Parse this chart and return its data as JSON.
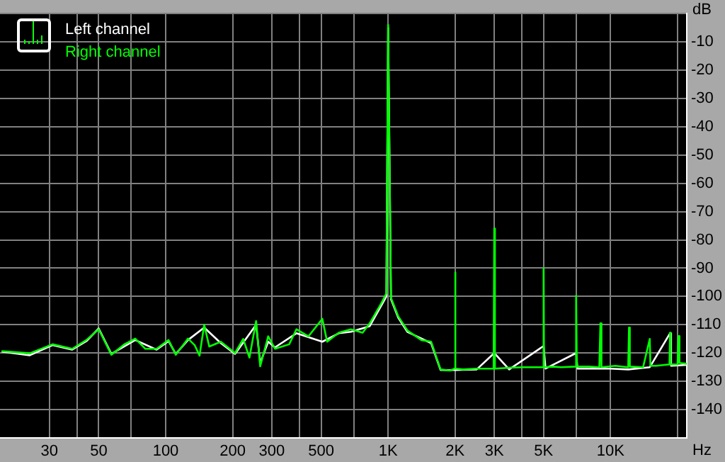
{
  "chart_data": {
    "type": "line",
    "xlabel": "Hz",
    "ylabel": "dB",
    "log": "x",
    "xlim": [
      18,
      22000
    ],
    "ylim": [
      -150,
      0
    ],
    "xticks": [
      30,
      {
        "value": 40,
        "label": null
      },
      50,
      {
        "value": 70,
        "label": null
      },
      100,
      200,
      300,
      {
        "value": 400,
        "label": null
      },
      500,
      {
        "value": 700,
        "label": null
      },
      {
        "value": 1000,
        "label": "1K"
      },
      {
        "value": 2000,
        "label": "2K"
      },
      {
        "value": 3000,
        "label": "3K"
      },
      {
        "value": 4000,
        "label": null
      },
      {
        "value": 5000,
        "label": "5K"
      },
      {
        "value": 7000,
        "label": null
      },
      {
        "value": 10000,
        "label": "10K"
      },
      {
        "value": 20000,
        "label": null
      }
    ],
    "yticks": [
      {
        "value": 0,
        "label": null
      },
      -10,
      -20,
      -30,
      -40,
      -50,
      -60,
      -70,
      -80,
      -90,
      -100,
      -110,
      -120,
      -130,
      -140,
      {
        "value": -150,
        "label": null
      }
    ],
    "grid": true,
    "legend": "top left",
    "series": [
      {
        "name": "Left channel",
        "color": "#ffffff",
        "x": [
          18.3,
          24.5,
          31,
          38,
          44,
          50,
          57,
          73,
          91,
          103,
          111,
          126,
          149,
          177,
          205,
          255,
          266,
          289,
          310,
          387,
          506,
          600,
          680,
          826,
          935,
          982,
          1000,
          1030,
          1110,
          1220,
          1560,
          1720,
          2000,
          2500,
          3000,
          3500,
          5000,
          5100,
          7000,
          7100,
          10000,
          12000,
          15000,
          18500,
          18700,
          22000
        ],
        "values": [
          -119.5,
          -120.8,
          -117.2,
          -118.8,
          -115.8,
          -111.3,
          -120.3,
          -115.4,
          -118.8,
          -115.8,
          -120.3,
          -115.4,
          -111,
          -116.5,
          -120.3,
          -110,
          -123.5,
          -116,
          -118,
          -113,
          -116,
          -113,
          -112.5,
          -110.5,
          -103,
          -100,
          -5,
          -101,
          -107.5,
          -112.5,
          -116.5,
          -126,
          -126,
          -125.8,
          -120,
          -125.8,
          -117.5,
          -125.5,
          -120,
          -125.5,
          -125.5,
          -125.8,
          -125,
          -113,
          -124.5,
          -124.2
        ]
      },
      {
        "name": "Right channel",
        "color": "#00ff00",
        "x": [
          18.3,
          24.5,
          31,
          38,
          44,
          50,
          57,
          65,
          73,
          81,
          91,
          103,
          111,
          126,
          135,
          142,
          149,
          157,
          177,
          205,
          223,
          238,
          255,
          266,
          289,
          310,
          359,
          387,
          438,
          506,
          532,
          600,
          680,
          768,
          826,
          935,
          982,
          1000,
          1030,
          1110,
          1220,
          1410,
          1560,
          1720,
          1900,
          1990,
          2000,
          2010,
          2170,
          2500,
          2980,
          3000,
          3020,
          3500,
          4000,
          4980,
          5000,
          5020,
          5500,
          6000,
          6950,
          7000,
          7050,
          8000,
          8900,
          9000,
          9100,
          10500,
          12000,
          12100,
          12200,
          14000,
          15000,
          15100,
          16000,
          18400,
          18500,
          18600,
          20000,
          20200,
          20400,
          22000
        ],
        "values": [
          -119.3,
          -120.1,
          -116.9,
          -118.5,
          -115.4,
          -111.6,
          -120.6,
          -117,
          -114.9,
          -118.5,
          -118.5,
          -115.4,
          -120.6,
          -114.9,
          -117.2,
          -120.9,
          -110,
          -117.7,
          -116,
          -120,
          -115,
          -121.6,
          -108.7,
          -124.7,
          -114.1,
          -118.5,
          -116.9,
          -111.6,
          -114.1,
          -107.9,
          -116,
          -112.8,
          -111.6,
          -112.8,
          -109.5,
          -102.2,
          -98.9,
          -4,
          -100.5,
          -107,
          -112,
          -115.4,
          -116,
          -125.8,
          -126.2,
          -125.5,
          -91.5,
          -125.5,
          -125.8,
          -125.5,
          -125.5,
          -76,
          -125.5,
          -125.2,
          -125,
          -125,
          -90,
          -125,
          -124.8,
          -125,
          -124.8,
          -99.7,
          -124.8,
          -124.8,
          -125,
          -109.5,
          -125,
          -124.5,
          -125,
          -111,
          -124.8,
          -125,
          -115,
          -124.5,
          -124.5,
          -124,
          -112.8,
          -124,
          -124,
          -114,
          -123.5,
          -123.8
        ]
      }
    ]
  }
}
